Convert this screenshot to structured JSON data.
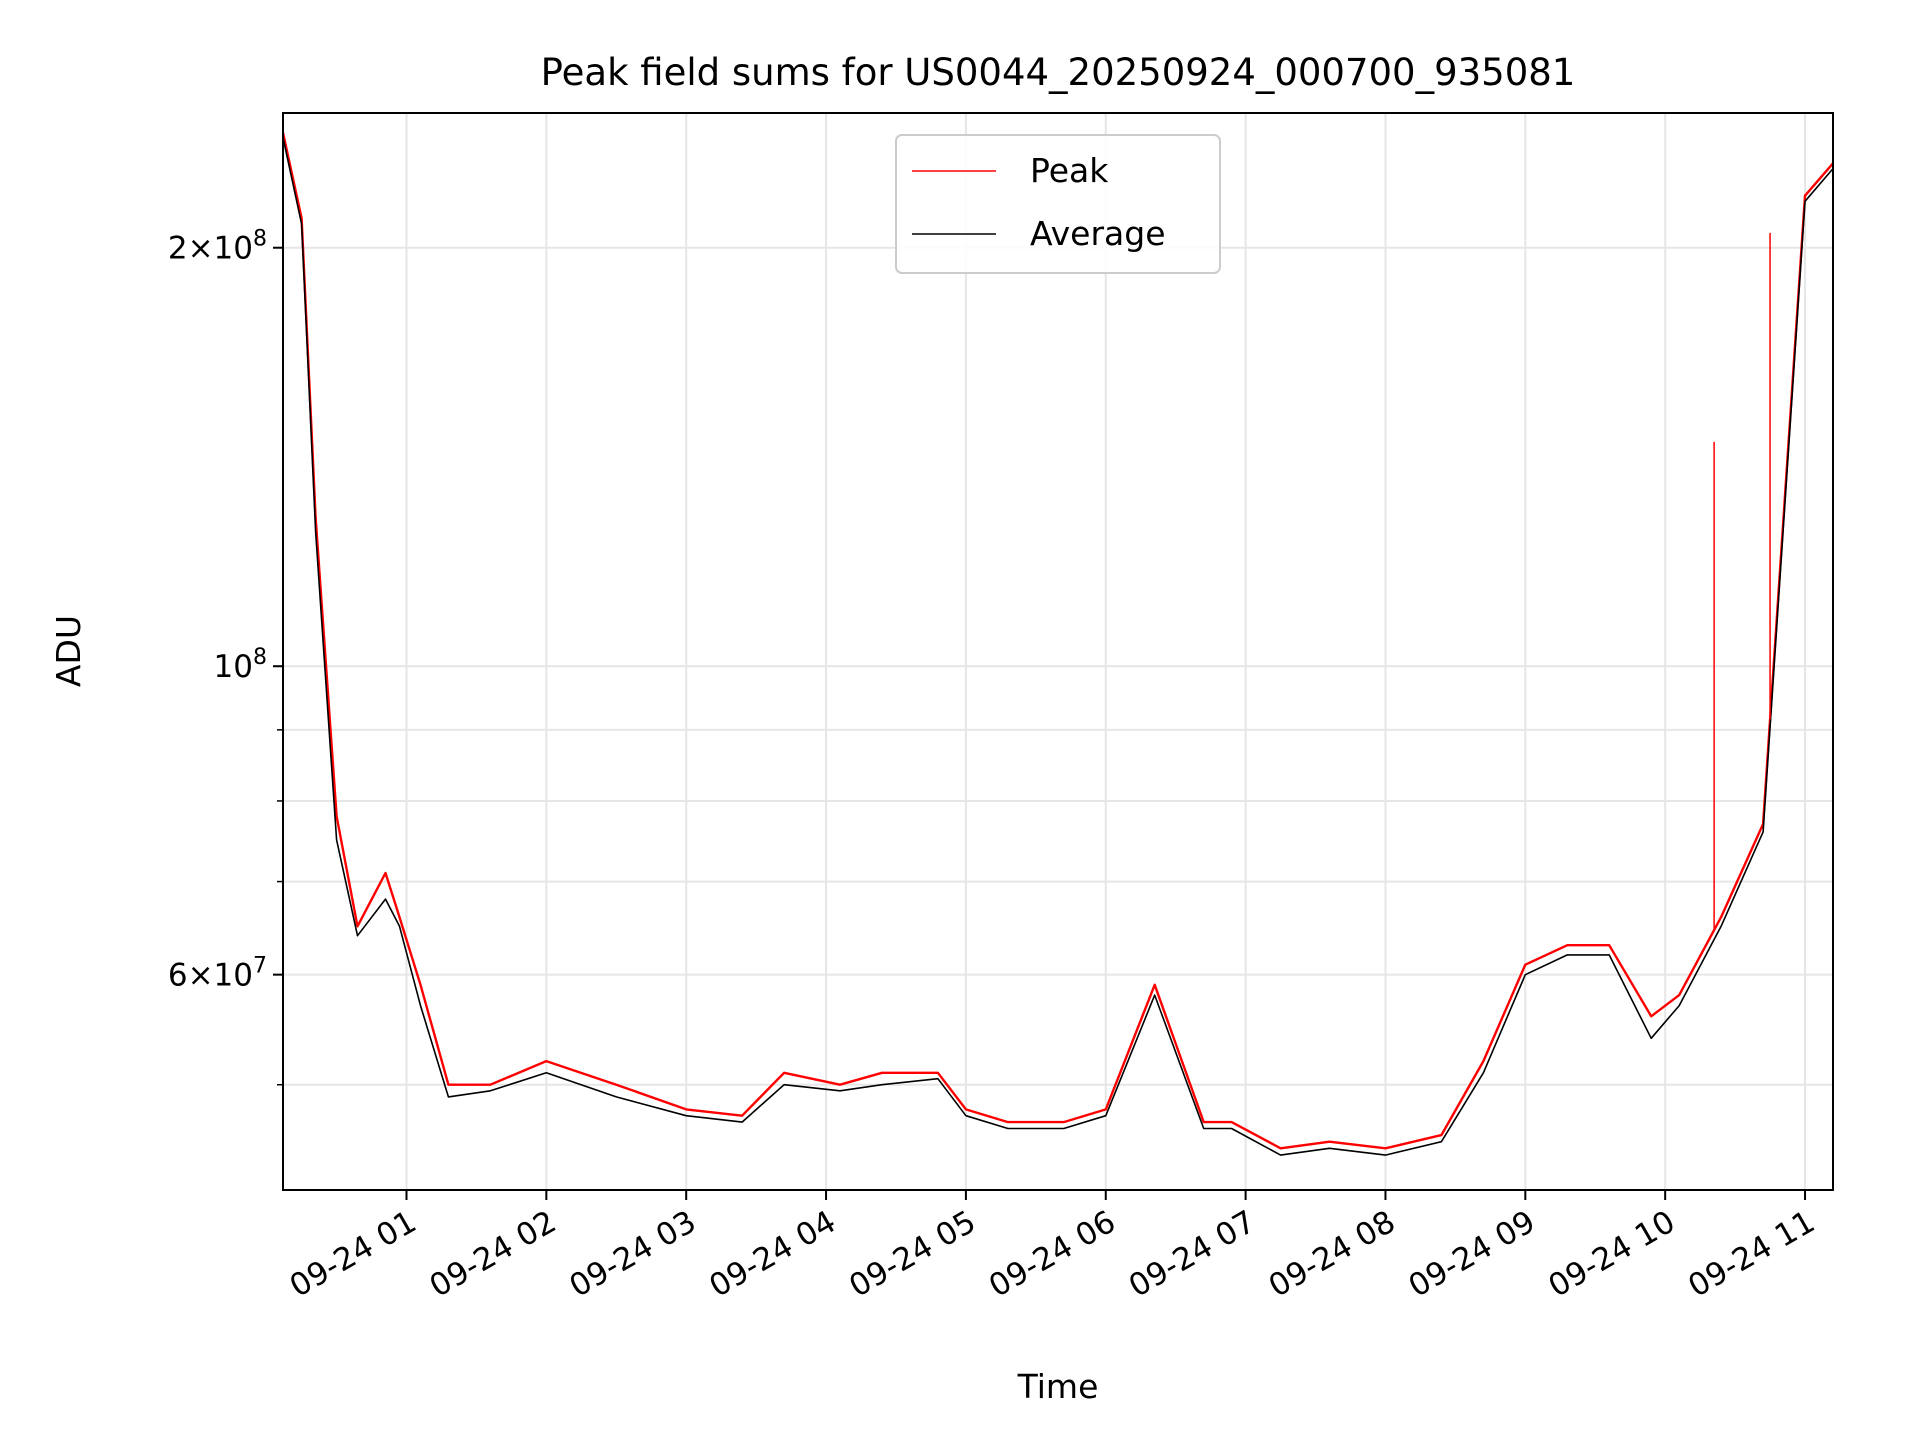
{
  "chart_data": {
    "type": "line",
    "title": "Peak field sums for US0044_20250924_000700_935081",
    "xlabel": "Time",
    "ylabel": "ADU",
    "y_scale": "log",
    "ylim": [
      42000000,
      250000000
    ],
    "xlim_hours": [
      0.117,
      11.2
    ],
    "grid": true,
    "legend_position": "upper center",
    "x_ticks": [
      {
        "hour": 1,
        "label": "09-24 01"
      },
      {
        "hour": 2,
        "label": "09-24 02"
      },
      {
        "hour": 3,
        "label": "09-24 03"
      },
      {
        "hour": 4,
        "label": "09-24 04"
      },
      {
        "hour": 5,
        "label": "09-24 05"
      },
      {
        "hour": 6,
        "label": "09-24 06"
      },
      {
        "hour": 7,
        "label": "09-24 07"
      },
      {
        "hour": 8,
        "label": "09-24 08"
      },
      {
        "hour": 9,
        "label": "09-24 09"
      },
      {
        "hour": 10,
        "label": "09-24 10"
      },
      {
        "hour": 11,
        "label": "09-24 11"
      }
    ],
    "y_major_ticks": [
      {
        "value": 200000000,
        "base": "2",
        "exp": "8"
      },
      {
        "value": 100000000,
        "base": "",
        "exp": "8"
      },
      {
        "value": 60000000,
        "base": "6",
        "exp": "7"
      }
    ],
    "y_minor_grid": [
      50000000,
      70000000,
      80000000,
      90000000
    ],
    "series": [
      {
        "name": "Peak",
        "color": "#ff0000",
        "x": [
          0.117,
          0.25,
          0.35,
          0.5,
          0.65,
          0.85,
          0.95,
          1.1,
          1.3,
          1.6,
          2.0,
          2.5,
          3.0,
          3.4,
          3.7,
          4.1,
          4.4,
          4.8,
          5.0,
          5.3,
          5.7,
          6.0,
          6.35,
          6.7,
          6.9,
          7.25,
          7.6,
          8.0,
          8.4,
          8.7,
          9.0,
          9.3,
          9.6,
          9.9,
          10.1,
          10.4,
          10.7,
          11.0,
          11.2
        ],
        "values": [
          242000000,
          210000000,
          128000000,
          78000000,
          65000000,
          71000000,
          66000000,
          59000000,
          50000000,
          50000000,
          52000000,
          50000000,
          48000000,
          47500000,
          51000000,
          50000000,
          51000000,
          51000000,
          48000000,
          47000000,
          47000000,
          48000000,
          59000000,
          47000000,
          47000000,
          45000000,
          45500000,
          45000000,
          46000000,
          52000000,
          61000000,
          63000000,
          63000000,
          56000000,
          58000000,
          66000000,
          77000000,
          218000000,
          230000000
        ]
      },
      {
        "name": "Average",
        "color": "#000000",
        "x": [
          0.117,
          0.25,
          0.35,
          0.5,
          0.65,
          0.85,
          0.95,
          1.1,
          1.3,
          1.6,
          2.0,
          2.5,
          3.0,
          3.4,
          3.7,
          4.1,
          4.4,
          4.8,
          5.0,
          5.3,
          5.7,
          6.0,
          6.35,
          6.7,
          6.9,
          7.25,
          7.6,
          8.0,
          8.4,
          8.7,
          9.0,
          9.3,
          9.6,
          9.9,
          10.1,
          10.4,
          10.7,
          11.0,
          11.2
        ],
        "values": [
          240000000,
          208000000,
          125000000,
          75000000,
          64000000,
          68000000,
          65000000,
          57000000,
          49000000,
          49500000,
          51000000,
          49000000,
          47500000,
          47000000,
          50000000,
          49500000,
          50000000,
          50500000,
          47500000,
          46500000,
          46500000,
          47500000,
          58000000,
          46500000,
          46500000,
          44500000,
          45000000,
          44500000,
          45500000,
          51000000,
          60000000,
          62000000,
          62000000,
          54000000,
          57000000,
          65000000,
          76000000,
          216000000,
          228000000
        ]
      }
    ],
    "annotations": [
      {
        "type": "spike",
        "series": "Peak",
        "hour": 10.35,
        "value": 145000000
      },
      {
        "type": "spike",
        "series": "Peak",
        "hour": 10.75,
        "value": 205000000
      }
    ]
  }
}
